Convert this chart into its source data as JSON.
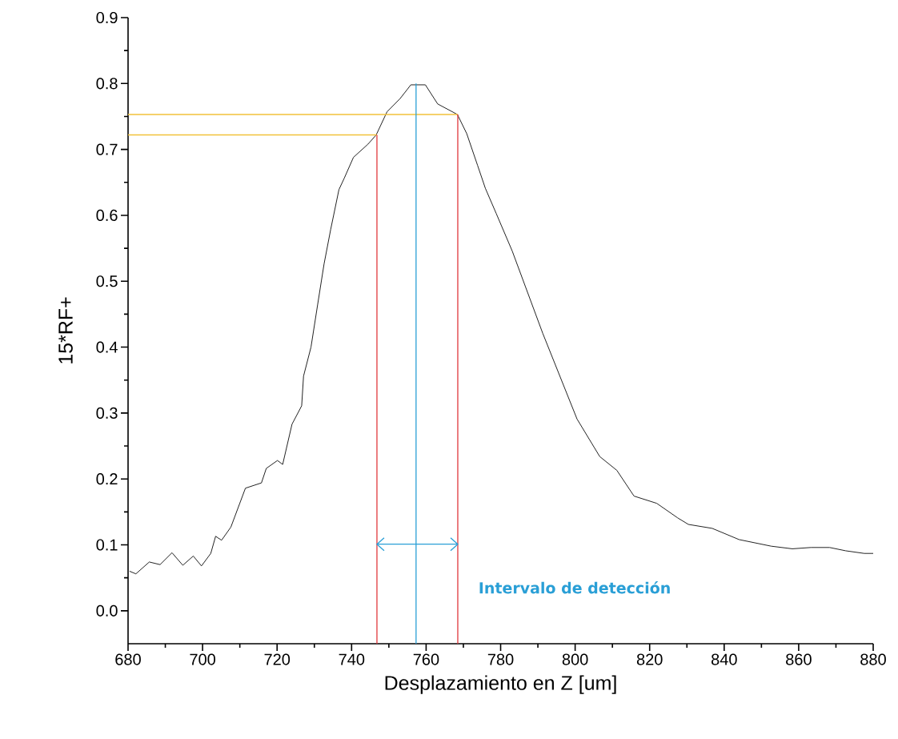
{
  "chart_data": {
    "type": "line",
    "xlabel": "Desplazamiento en Z [um]",
    "ylabel": "15*RF+",
    "xlim": [
      680,
      880
    ],
    "ylim": [
      -0.05,
      0.9
    ],
    "xticks": [
      680,
      700,
      720,
      740,
      760,
      780,
      800,
      820,
      840,
      860,
      880
    ],
    "yticks": [
      {
        "value": 0.0,
        "label": "0.0"
      },
      0.1,
      0.2,
      0.3,
      0.4,
      0.5,
      0.6,
      0.7,
      0.8,
      0.9
    ],
    "series": [
      {
        "color": "#222222",
        "x": [
          680.4,
          682.1,
          685.7,
          688.6,
          691.8,
          694.7,
          697.5,
          699.7,
          702.2,
          703.5,
          705.1,
          707.6,
          711.5,
          715.8,
          717.1,
          720.1,
          721.5,
          724.0,
          726.6,
          727.1,
          729.1,
          730.9,
          732.6,
          734.4,
          736.6,
          738.0,
          740.5,
          744.4,
          746.6,
          749.5,
          753.0,
          755.9,
          759.8,
          763.1,
          768.4,
          770.9,
          773.8,
          775.9,
          778.8,
          783.1,
          791.3,
          800.5,
          806.6,
          811.2,
          815.8,
          821.9,
          827.5,
          830.4,
          836.8,
          844.0,
          852.6,
          858.3,
          863.3,
          868.3,
          872.6,
          877.6,
          880.0
        ],
        "values": [
          0.06,
          0.056,
          0.074,
          0.07,
          0.088,
          0.069,
          0.083,
          0.068,
          0.087,
          0.113,
          0.107,
          0.127,
          0.186,
          0.194,
          0.216,
          0.228,
          0.222,
          0.283,
          0.311,
          0.356,
          0.4,
          0.465,
          0.526,
          0.579,
          0.639,
          0.656,
          0.688,
          0.708,
          0.722,
          0.757,
          0.777,
          0.798,
          0.798,
          0.769,
          0.753,
          0.724,
          0.676,
          0.641,
          0.603,
          0.546,
          0.421,
          0.291,
          0.234,
          0.213,
          0.174,
          0.163,
          0.141,
          0.131,
          0.125,
          0.108,
          0.098,
          0.094,
          0.096,
          0.096,
          0.091,
          0.087,
          0.087
        ]
      },
      {
        "color": "#f2c23a",
        "x": [
          680,
          768.5
        ],
        "values": [
          0.753,
          0.753
        ]
      },
      {
        "color": "#f2c23a",
        "x": [
          680,
          746.8
        ],
        "values": [
          0.722,
          0.722
        ]
      },
      {
        "color": "#e0383c",
        "x": [
          746.8,
          746.8
        ],
        "values": [
          -0.05,
          0.722
        ]
      },
      {
        "color": "#e0383c",
        "x": [
          768.5,
          768.5
        ],
        "values": [
          -0.05,
          0.753
        ]
      },
      {
        "color": "#2a9fd6",
        "x": [
          757.3,
          757.3
        ],
        "values": [
          -0.05,
          0.8
        ]
      },
      {
        "color": "#2a9fd6",
        "x": [
          746.8,
          768.5
        ],
        "values": [
          0.101,
          0.101
        ]
      }
    ],
    "annotations": [
      "Intervalo de detección"
    ]
  }
}
